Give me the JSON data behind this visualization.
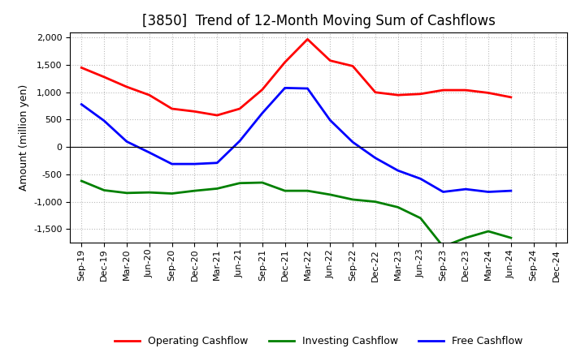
{
  "title": "[3850]  Trend of 12-Month Moving Sum of Cashflows",
  "ylabel": "Amount (million yen)",
  "x_labels": [
    "Sep-19",
    "Dec-19",
    "Mar-20",
    "Jun-20",
    "Sep-20",
    "Dec-20",
    "Mar-21",
    "Jun-21",
    "Sep-21",
    "Dec-21",
    "Mar-22",
    "Jun-22",
    "Sep-22",
    "Dec-22",
    "Mar-23",
    "Jun-23",
    "Sep-23",
    "Dec-23",
    "Mar-24",
    "Jun-24",
    "Sep-24",
    "Dec-24"
  ],
  "operating": [
    1450,
    1280,
    1100,
    950,
    700,
    650,
    580,
    700,
    1050,
    1550,
    1970,
    1580,
    1480,
    1000,
    950,
    970,
    1040,
    1040,
    990,
    910,
    null,
    null
  ],
  "investing": [
    -620,
    -790,
    -840,
    -830,
    -850,
    -800,
    -760,
    -660,
    -650,
    -800,
    -800,
    -870,
    -960,
    -1000,
    -1100,
    -1300,
    -1820,
    -1660,
    -1540,
    -1660,
    null,
    null
  ],
  "free": [
    780,
    480,
    100,
    -100,
    -310,
    -310,
    -290,
    110,
    620,
    1080,
    1070,
    490,
    90,
    -200,
    -430,
    -580,
    -820,
    -770,
    -820,
    -800,
    null,
    null
  ],
  "operating_color": "#FF0000",
  "investing_color": "#008000",
  "free_color": "#0000FF",
  "ylim": [
    -1750,
    2100
  ],
  "yticks": [
    -1500,
    -1000,
    -500,
    0,
    500,
    1000,
    1500,
    2000
  ],
  "bg_color": "#FFFFFF",
  "grid_color": "#BBBBBB",
  "title_fontsize": 12,
  "label_fontsize": 9,
  "tick_fontsize": 8,
  "legend_fontsize": 9,
  "linewidth": 2.0
}
